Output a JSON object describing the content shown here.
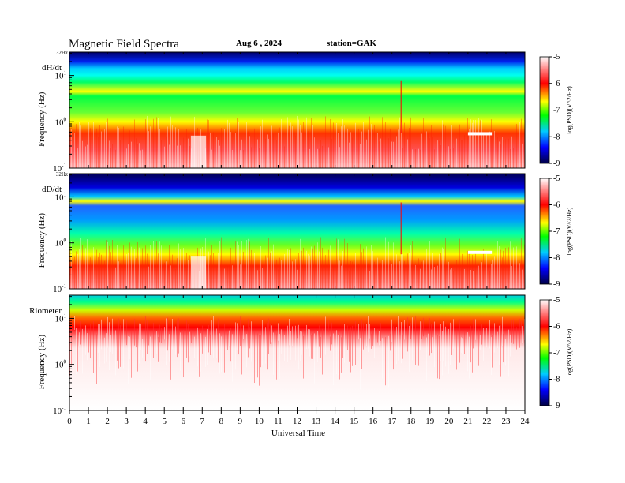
{
  "header": {
    "title": "Magnetic  Field  Spectra",
    "date": "Aug 6  , 2024",
    "station": "station=GAK"
  },
  "chart_data": [
    {
      "type": "heatmap",
      "panel": "dH/dt",
      "top_label": "32Hz",
      "ylabel": "Frequency  (Hz)",
      "yticks": [
        {
          "base": "10",
          "exp": "1",
          "value": 10
        },
        {
          "base": "10",
          "exp": "0",
          "value": 1
        },
        {
          "base": "10",
          "exp": "-1",
          "value": 0.1
        }
      ],
      "ylim": [
        0.1,
        32
      ],
      "yscale": "log",
      "xlim": [
        0,
        24
      ],
      "colorbar": {
        "label": "log(PSD)(V^2/Hz)",
        "ticks": [
          "-5",
          "-6",
          "-7",
          "-8",
          "-9"
        ],
        "range": [
          -9,
          -5
        ]
      }
    },
    {
      "type": "heatmap",
      "panel": "dD/dt",
      "top_label": "32Hz",
      "ylabel": "Frequency  (Hz)",
      "yticks": [
        {
          "base": "10",
          "exp": "1",
          "value": 10
        },
        {
          "base": "10",
          "exp": "0",
          "value": 1
        },
        {
          "base": "10",
          "exp": "-1",
          "value": 0.1
        }
      ],
      "ylim": [
        0.1,
        32
      ],
      "yscale": "log",
      "xlim": [
        0,
        24
      ],
      "colorbar": {
        "label": "log(PSD)(V^2/Hz)",
        "ticks": [
          "-5",
          "-6",
          "-7",
          "-8",
          "-9"
        ],
        "range": [
          -9,
          -5
        ]
      }
    },
    {
      "type": "heatmap",
      "panel": "Riometer",
      "top_label": "",
      "ylabel": "Frequency  (Hz)",
      "yticks": [
        {
          "base": "10",
          "exp": "1",
          "value": 10
        },
        {
          "base": "10",
          "exp": "0",
          "value": 1
        },
        {
          "base": "10",
          "exp": "-1",
          "value": 0.1
        }
      ],
      "ylim": [
        0.1,
        32
      ],
      "yscale": "log",
      "xlim": [
        0,
        24
      ],
      "colorbar": {
        "label": "log(PSD)(V^2/Hz)",
        "ticks": [
          "-5",
          "-6",
          "-7",
          "-8",
          "-9"
        ],
        "range": [
          -9,
          -5
        ]
      }
    }
  ],
  "xaxis": {
    "label": "Universal  Time",
    "ticks": [
      "0",
      "1",
      "2",
      "3",
      "4",
      "5",
      "6",
      "7",
      "8",
      "9",
      "10",
      "11",
      "12",
      "13",
      "14",
      "15",
      "16",
      "17",
      "18",
      "19",
      "20",
      "21",
      "22",
      "23",
      "24"
    ]
  },
  "colors": {
    "spectrum": [
      "#000066",
      "#0000ff",
      "#00ccff",
      "#00ff66",
      "#ffff00",
      "#ff0000",
      "#ffffff"
    ]
  }
}
